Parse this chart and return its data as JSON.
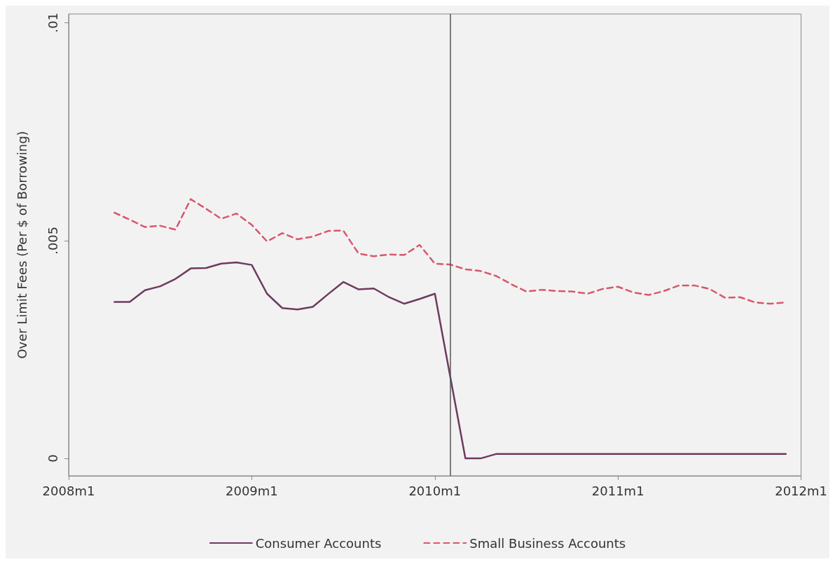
{
  "chart_data": {
    "type": "line",
    "ylabel": "Over Limit Fees (Per $ of Borrowing)",
    "xlim": [
      "2008-01",
      "2012-01"
    ],
    "xticks": [
      {
        "value": "2008-01",
        "label": "2008m1"
      },
      {
        "value": "2009-01",
        "label": "2009m1"
      },
      {
        "value": "2010-01",
        "label": "2010m1"
      },
      {
        "value": "2011-01",
        "label": "2011m1"
      },
      {
        "value": "2012-01",
        "label": "2012m1"
      }
    ],
    "ylim": [
      -0.0004,
      0.0102
    ],
    "yticks": [
      {
        "value": 0,
        "label": "0"
      },
      {
        "value": 0.005,
        "label": ".005"
      },
      {
        "value": 0.01,
        "label": ".01"
      }
    ],
    "x": [
      "2008-04",
      "2008-05",
      "2008-06",
      "2008-07",
      "2008-08",
      "2008-09",
      "2008-10",
      "2008-11",
      "2008-12",
      "2009-01",
      "2009-02",
      "2009-03",
      "2009-04",
      "2009-05",
      "2009-06",
      "2009-07",
      "2009-08",
      "2009-09",
      "2009-10",
      "2009-11",
      "2009-12",
      "2010-01",
      "2010-02",
      "2010-03",
      "2010-04",
      "2010-05",
      "2010-06",
      "2010-07",
      "2010-08",
      "2010-09",
      "2010-10",
      "2010-11",
      "2010-12",
      "2011-01",
      "2011-02",
      "2011-03",
      "2011-04",
      "2011-05",
      "2011-06",
      "2011-07",
      "2011-08",
      "2011-09",
      "2011-10",
      "2011-11",
      "2011-12"
    ],
    "series": [
      {
        "name": "Consumer Accounts",
        "color": "#6e3a5e",
        "line_style": "solid",
        "values": [
          0.00359,
          0.00359,
          0.00386,
          0.00395,
          0.00412,
          0.00436,
          0.00437,
          0.00447,
          0.0045,
          0.00444,
          0.00378,
          0.00345,
          0.00342,
          0.00348,
          0.00377,
          0.00405,
          0.00388,
          0.0039,
          0.0037,
          0.00355,
          0.00366,
          0.00378,
          0.00189,
          0,
          0,
          0.0001,
          0.0001,
          0.0001,
          0.0001,
          0.0001,
          0.0001,
          0.0001,
          0.0001,
          0.0001,
          0.0001,
          0.0001,
          0.0001,
          0.0001,
          0.0001,
          0.0001,
          0.0001,
          0.0001,
          0.0001,
          0.0001,
          0.0001
        ]
      },
      {
        "name": "Small Business Accounts",
        "color": "#d9566c",
        "line_style": "dashed",
        "values": [
          0.00564,
          0.00548,
          0.00531,
          0.00534,
          0.00525,
          0.00595,
          0.00573,
          0.0055,
          0.00562,
          0.00536,
          0.00498,
          0.00517,
          0.00503,
          0.00509,
          0.00522,
          0.00523,
          0.0047,
          0.00464,
          0.00468,
          0.00467,
          0.0049,
          0.00447,
          0.00445,
          0.00434,
          0.0043,
          0.00419,
          0.004,
          0.00383,
          0.00387,
          0.00384,
          0.00383,
          0.00378,
          0.00389,
          0.00394,
          0.00381,
          0.00375,
          0.00384,
          0.00397,
          0.00397,
          0.00389,
          0.00369,
          0.0037,
          0.00358,
          0.00355,
          0.00358
        ]
      }
    ],
    "ref_lines": [
      {
        "axis": "x",
        "value": "2010-02",
        "color": "#555555",
        "line_style": "solid"
      }
    ],
    "grid": false,
    "marker": "none",
    "legend": "bottom"
  }
}
